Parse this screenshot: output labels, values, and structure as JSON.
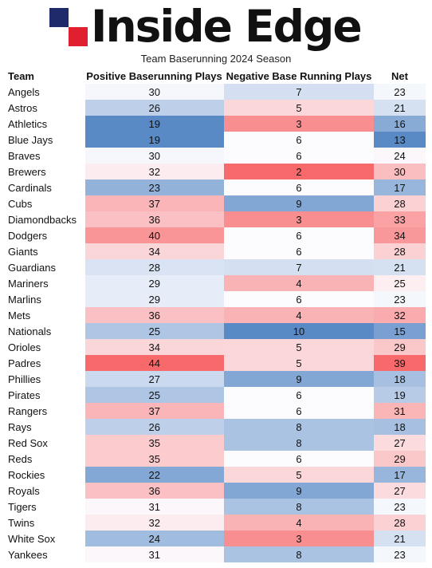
{
  "logo": {
    "text": "Inside Edge",
    "colors": {
      "navy": "#1f2a6b",
      "red": "#e01f2f"
    }
  },
  "subtitle": "Team Baserunning 2024 Season",
  "chart_data": {
    "type": "table",
    "title": "Team Baserunning 2024 Season",
    "columns": [
      "Team",
      "Positive Baserunning Plays",
      "Negative Base Running Plays",
      "Net"
    ],
    "rows": [
      [
        "Angels",
        30,
        7,
        23
      ],
      [
        "Astros",
        26,
        5,
        21
      ],
      [
        "Athletics",
        19,
        3,
        16
      ],
      [
        "Blue Jays",
        19,
        6,
        13
      ],
      [
        "Braves",
        30,
        6,
        24
      ],
      [
        "Brewers",
        32,
        2,
        30
      ],
      [
        "Cardinals",
        23,
        6,
        17
      ],
      [
        "Cubs",
        37,
        9,
        28
      ],
      [
        "Diamondbacks",
        36,
        3,
        33
      ],
      [
        "Dodgers",
        40,
        6,
        34
      ],
      [
        "Giants",
        34,
        6,
        28
      ],
      [
        "Guardians",
        28,
        7,
        21
      ],
      [
        "Mariners",
        29,
        4,
        25
      ],
      [
        "Marlins",
        29,
        6,
        23
      ],
      [
        "Mets",
        36,
        4,
        32
      ],
      [
        "Nationals",
        25,
        10,
        15
      ],
      [
        "Orioles",
        34,
        5,
        29
      ],
      [
        "Padres",
        44,
        5,
        39
      ],
      [
        "Phillies",
        27,
        9,
        18
      ],
      [
        "Pirates",
        25,
        6,
        19
      ],
      [
        "Rangers",
        37,
        6,
        31
      ],
      [
        "Rays",
        26,
        8,
        18
      ],
      [
        "Red Sox",
        35,
        8,
        27
      ],
      [
        "Reds",
        35,
        6,
        29
      ],
      [
        "Rockies",
        22,
        5,
        17
      ],
      [
        "Royals",
        36,
        9,
        27
      ],
      [
        "Tigers",
        31,
        8,
        23
      ],
      [
        "Twins",
        32,
        4,
        28
      ],
      [
        "White Sox",
        24,
        3,
        21
      ],
      [
        "Yankees",
        31,
        8,
        23
      ]
    ],
    "color_scale": {
      "good": "#f8696b",
      "neutral": "#fcfcff",
      "bad": "#5a8ac6"
    },
    "good_direction": {
      "positive": "high",
      "negative": "low",
      "net": "high"
    }
  }
}
